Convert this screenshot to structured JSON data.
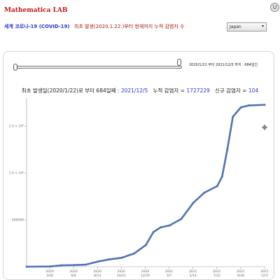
{
  "header": {
    "brand": "Mathematica LAB",
    "info_icon": "U"
  },
  "subheader": {
    "title": "세계 코로나-19 (COVID-19)",
    "description": "최초 발생(2020.1.22.)부터 현재까지 누적 감염자 수",
    "country_select": "Japan"
  },
  "slider": {
    "range_text": "2020/1/22 부터 2021/12/5 까지 : 684일간"
  },
  "summary": {
    "prefix": "최초 발생일(2020/1/22)로 부터 684일째 : ",
    "date": "2021/12/5",
    "cum_label": "누적 감염자 = ",
    "cum_value": "1727229",
    "new_label": "신규 감염자 = ",
    "new_value": "104"
  },
  "chart_data": {
    "type": "scatter",
    "title": "",
    "xlabel": "",
    "ylabel": "",
    "x_ticks": [
      {
        "year": "2020",
        "date": "3/30"
      },
      {
        "year": "2020",
        "date": "6/6"
      },
      {
        "year": "2020",
        "date": "8/14"
      },
      {
        "year": "2020",
        "date": "10/21"
      },
      {
        "year": "2020",
        "date": "12/29"
      },
      {
        "year": "2021",
        "date": "3/7"
      },
      {
        "year": "2021",
        "date": "5/14"
      },
      {
        "year": "2021",
        "date": "7/22"
      },
      {
        "year": "2021",
        "date": "9/28"
      },
      {
        "year": "2021",
        "date": "12/5"
      }
    ],
    "y_ticks": [
      "500000",
      "1.0 × 10⁶",
      "1.5 × 10⁶"
    ],
    "ylim": [
      0,
      1800000
    ],
    "series_color": "#4e73b3",
    "series": [
      {
        "x": [
          "2020-01-22",
          "2020-03-30",
          "2020-05-01",
          "2020-06-06",
          "2020-07-10",
          "2020-08-14",
          "2020-09-15",
          "2020-10-21",
          "2020-11-25",
          "2020-12-29",
          "2021-01-20",
          "2021-02-10",
          "2021-03-07",
          "2021-04-10",
          "2021-05-14",
          "2021-06-15",
          "2021-07-22",
          "2021-08-05",
          "2021-08-20",
          "2021-09-05",
          "2021-09-28",
          "2021-10-20",
          "2021-12-05"
        ],
        "y": [
          0,
          2500,
          15000,
          17000,
          22000,
          55000,
          78000,
          95000,
          140000,
          230000,
          370000,
          420000,
          440000,
          510000,
          680000,
          790000,
          860000,
          960000,
          1250000,
          1600000,
          1700000,
          1720000,
          1727229
        ]
      }
    ]
  }
}
